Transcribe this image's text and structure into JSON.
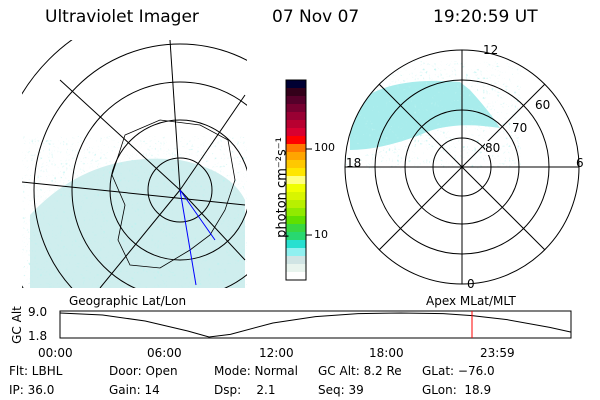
{
  "header": {
    "instrument": "Ultraviolet Imager",
    "date": "07 Nov 07",
    "time": "19:20:59 UT"
  },
  "left_map": {
    "label": "Geographic Lat/Lon"
  },
  "right_map": {
    "label": "Apex MLat/MLT",
    "lat_labels": [
      "60",
      "70",
      "80"
    ],
    "mlt_labels": {
      "top": "12",
      "left": "18",
      "right": "6",
      "bottom": "0"
    }
  },
  "colorbar": {
    "unit_label": "photon cm⁻²s⁻¹",
    "tick_labels": [
      "100",
      "10"
    ],
    "colors": [
      "#000033",
      "#33001a",
      "#55002a",
      "#770030",
      "#990033",
      "#b80030",
      "#d80030",
      "#ff0000",
      "#ff7700",
      "#ffa500",
      "#ffc800",
      "#ffe600",
      "#ffff80",
      "#f0ff00",
      "#d8f500",
      "#b8f000",
      "#90ea00",
      "#60e000",
      "#38d840",
      "#28d870",
      "#28e0d0",
      "#90f0f0",
      "#d0e4e4",
      "#e8f4ee",
      "#ffffff"
    ]
  },
  "alt_plot": {
    "ylabel": "GC Alt",
    "ytick_labels": [
      "9.0",
      "1.8"
    ],
    "xtick_labels": [
      "00:00",
      "06:00",
      "12:00",
      "18:00",
      "23:59"
    ],
    "ylim": [
      1.8,
      9.0
    ],
    "current_time_hours": 19.35,
    "marker_color": "#ff0000",
    "curve": [
      [
        0,
        9.0
      ],
      [
        2,
        8.4
      ],
      [
        4,
        6.6
      ],
      [
        6,
        3.6
      ],
      [
        7,
        1.8
      ],
      [
        8,
        2.6
      ],
      [
        10,
        6.0
      ],
      [
        12,
        7.9
      ],
      [
        14,
        8.8
      ],
      [
        16,
        9.0
      ],
      [
        18,
        8.8
      ],
      [
        19.35,
        8.2
      ],
      [
        21,
        7.0
      ],
      [
        23,
        4.7
      ],
      [
        23.98,
        3.3
      ]
    ]
  },
  "info": {
    "row1": [
      "Flt: LBHL",
      "Door: Open",
      "Mode: Normal",
      "GC Alt: 8.2 Re",
      "GLat: −76.0"
    ],
    "row2": [
      "IP: 36.0",
      "Gain: 14",
      "Dsp:    2.1",
      "Seq: 39",
      "GLon:  18.9"
    ]
  }
}
